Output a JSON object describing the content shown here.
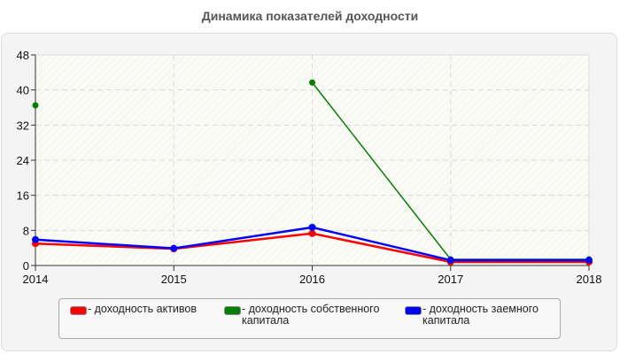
{
  "chart_data": {
    "type": "line",
    "title": "Динамика показателей доходности",
    "xlabel": "",
    "ylabel": "",
    "x": [
      "2014",
      "2015",
      "2016",
      "2017",
      "2018"
    ],
    "ylim": [
      0,
      48
    ],
    "yticks": [
      0,
      8,
      16,
      24,
      32,
      40,
      48
    ],
    "grid": true,
    "legend_position": "bottom",
    "series": [
      {
        "name": "- доходность активов",
        "color": "#ff0000",
        "values": [
          5.0,
          3.8,
          7.3,
          0.8,
          0.8
        ]
      },
      {
        "name": "- доходность собственного капитала",
        "color": "#008000",
        "values": [
          36.5,
          null,
          41.7,
          1.4,
          1.4
        ]
      },
      {
        "name": "- доходность заемного капитала",
        "color": "#0000ff",
        "values": [
          5.9,
          3.9,
          8.7,
          1.2,
          1.2
        ]
      }
    ]
  },
  "legend": {
    "items": [
      {
        "label": "- доходность активов",
        "color": "#ff0000"
      },
      {
        "label": "- доходность собственного капитала",
        "color": "#008000"
      },
      {
        "label": "- доходность заемного капитала",
        "color": "#0000ff"
      }
    ]
  }
}
